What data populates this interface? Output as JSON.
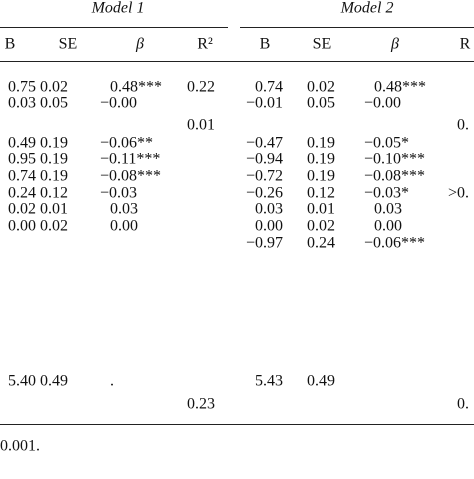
{
  "table": {
    "groups": [
      "Model 1",
      "Model 2"
    ],
    "columns": [
      "B",
      "SE",
      "β",
      "R²",
      "B",
      "SE",
      "β",
      "R"
    ],
    "rows": [
      [
        "0.75",
        "0.02",
        "0.48***",
        "0.22",
        "0.74",
        "0.02",
        "0.48***",
        null
      ],
      [
        "0.03",
        "0.05",
        "−0.00",
        null,
        "−0.01",
        "0.05",
        "−0.00",
        null
      ],
      [
        null,
        null,
        null,
        "0.01",
        null,
        null,
        null,
        "0."
      ],
      [
        "0.49",
        "0.19",
        "−0.06**",
        null,
        "−0.47",
        "0.19",
        "−0.05*",
        null
      ],
      [
        "0.95",
        "0.19",
        "−0.11***",
        null,
        "−0.94",
        "0.19",
        "−0.10***",
        null
      ],
      [
        "0.74",
        "0.19",
        "−0.08***",
        null,
        "−0.72",
        "0.19",
        "−0.08***",
        null
      ],
      [
        "0.24",
        "0.12",
        "−0.03",
        null,
        "−0.26",
        "0.12",
        "−0.03*",
        ">0."
      ],
      [
        "0.02",
        "0.01",
        "0.03",
        null,
        "0.03",
        "0.01",
        "0.03",
        null
      ],
      [
        "0.00",
        "0.02",
        "0.00",
        null,
        "0.00",
        "0.02",
        "0.00",
        null
      ],
      [
        null,
        null,
        null,
        null,
        "−0.97",
        "0.24",
        "−0.06***",
        null
      ],
      [
        "5.40",
        "0.49",
        ".",
        null,
        "5.43",
        "0.49",
        null,
        null
      ],
      [
        null,
        null,
        null,
        "0.23",
        null,
        null,
        null,
        "0."
      ]
    ],
    "footnote": "0.001."
  }
}
